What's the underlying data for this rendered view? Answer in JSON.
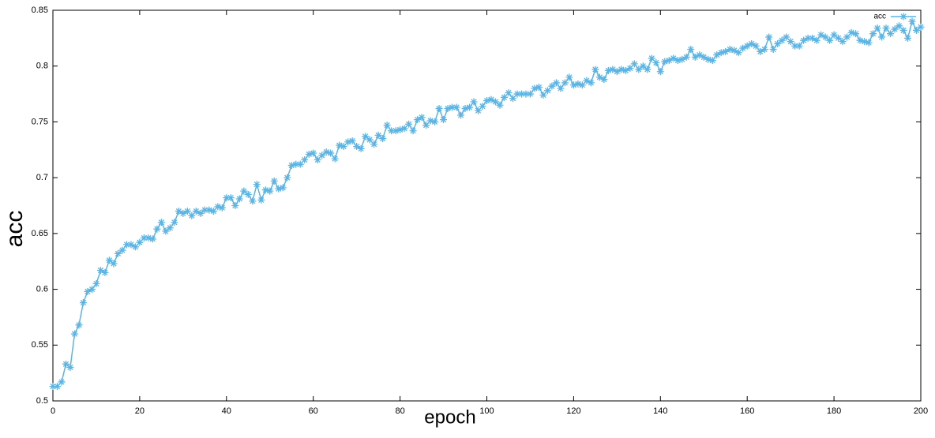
{
  "chart_data": {
    "type": "line",
    "xlabel": "epoch",
    "ylabel": "acc",
    "x": [
      0,
      1,
      2,
      3,
      4,
      5,
      6,
      7,
      8,
      9,
      10,
      11,
      12,
      13,
      14,
      15,
      16,
      17,
      18,
      19,
      20,
      21,
      22,
      23,
      24,
      25,
      26,
      27,
      28,
      29,
      30,
      31,
      32,
      33,
      34,
      35,
      36,
      37,
      38,
      39,
      40,
      41,
      42,
      43,
      44,
      45,
      46,
      47,
      48,
      49,
      50,
      51,
      52,
      53,
      54,
      55,
      56,
      57,
      58,
      59,
      60,
      61,
      62,
      63,
      64,
      65,
      66,
      67,
      68,
      69,
      70,
      71,
      72,
      73,
      74,
      75,
      76,
      77,
      78,
      79,
      80,
      81,
      82,
      83,
      84,
      85,
      86,
      87,
      88,
      89,
      90,
      91,
      92,
      93,
      94,
      95,
      96,
      97,
      98,
      99,
      100,
      101,
      102,
      103,
      104,
      105,
      106,
      107,
      108,
      109,
      110,
      111,
      112,
      113,
      114,
      115,
      116,
      117,
      118,
      119,
      120,
      121,
      122,
      123,
      124,
      125,
      126,
      127,
      128,
      129,
      130,
      131,
      132,
      133,
      134,
      135,
      136,
      137,
      138,
      139,
      140,
      141,
      142,
      143,
      144,
      145,
      146,
      147,
      148,
      149,
      150,
      151,
      152,
      153,
      154,
      155,
      156,
      157,
      158,
      159,
      160,
      161,
      162,
      163,
      164,
      165,
      166,
      167,
      168,
      169,
      170,
      171,
      172,
      173,
      174,
      175,
      176,
      177,
      178,
      179,
      180,
      181,
      182,
      183,
      184,
      185,
      186,
      187,
      188,
      189,
      190,
      191,
      192,
      193,
      194,
      195,
      196,
      197,
      198,
      199,
      200
    ],
    "series": [
      {
        "name": "acc",
        "color": "#5ab4e5",
        "values": [
          0.513,
          0.513,
          0.517,
          0.533,
          0.53,
          0.56,
          0.568,
          0.588,
          0.598,
          0.6,
          0.605,
          0.617,
          0.615,
          0.626,
          0.623,
          0.632,
          0.635,
          0.64,
          0.64,
          0.638,
          0.642,
          0.646,
          0.646,
          0.645,
          0.654,
          0.66,
          0.652,
          0.655,
          0.66,
          0.67,
          0.668,
          0.67,
          0.666,
          0.67,
          0.668,
          0.671,
          0.671,
          0.67,
          0.674,
          0.673,
          0.682,
          0.682,
          0.675,
          0.681,
          0.688,
          0.685,
          0.679,
          0.694,
          0.68,
          0.689,
          0.688,
          0.697,
          0.69,
          0.691,
          0.7,
          0.711,
          0.712,
          0.712,
          0.716,
          0.721,
          0.722,
          0.716,
          0.72,
          0.723,
          0.722,
          0.717,
          0.729,
          0.728,
          0.732,
          0.733,
          0.728,
          0.726,
          0.737,
          0.734,
          0.73,
          0.738,
          0.735,
          0.747,
          0.742,
          0.742,
          0.743,
          0.744,
          0.748,
          0.742,
          0.752,
          0.754,
          0.747,
          0.751,
          0.75,
          0.762,
          0.752,
          0.762,
          0.763,
          0.763,
          0.756,
          0.762,
          0.763,
          0.768,
          0.76,
          0.764,
          0.769,
          0.77,
          0.768,
          0.765,
          0.772,
          0.776,
          0.771,
          0.775,
          0.775,
          0.775,
          0.775,
          0.78,
          0.781,
          0.774,
          0.778,
          0.782,
          0.785,
          0.78,
          0.785,
          0.79,
          0.783,
          0.784,
          0.783,
          0.787,
          0.785,
          0.797,
          0.79,
          0.788,
          0.796,
          0.797,
          0.795,
          0.797,
          0.796,
          0.798,
          0.802,
          0.797,
          0.8,
          0.797,
          0.807,
          0.803,
          0.795,
          0.804,
          0.805,
          0.807,
          0.805,
          0.806,
          0.808,
          0.815,
          0.808,
          0.81,
          0.808,
          0.806,
          0.805,
          0.81,
          0.812,
          0.813,
          0.815,
          0.814,
          0.812,
          0.816,
          0.818,
          0.82,
          0.818,
          0.813,
          0.815,
          0.826,
          0.815,
          0.82,
          0.823,
          0.826,
          0.822,
          0.818,
          0.818,
          0.823,
          0.825,
          0.825,
          0.823,
          0.828,
          0.826,
          0.823,
          0.828,
          0.825,
          0.822,
          0.826,
          0.83,
          0.829,
          0.823,
          0.822,
          0.821,
          0.829,
          0.834,
          0.826,
          0.834,
          0.829,
          0.833,
          0.836,
          0.832,
          0.825,
          0.84,
          0.832,
          0.835
        ]
      }
    ],
    "xlim": [
      0,
      200
    ],
    "xticks": [
      0,
      20,
      40,
      60,
      80,
      100,
      120,
      140,
      160,
      180,
      200
    ],
    "ylim": [
      0.5,
      0.85
    ],
    "yticks": [
      0.5,
      0.55,
      0.6,
      0.65,
      0.7,
      0.75,
      0.8,
      0.85
    ],
    "grid": false,
    "legend": "top-right"
  }
}
